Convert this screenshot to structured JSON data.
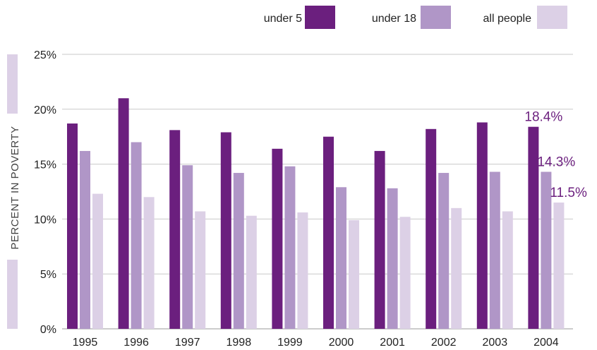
{
  "chart_data": {
    "type": "bar",
    "categories": [
      "1995",
      "1996",
      "1997",
      "1998",
      "1999",
      "2000",
      "2001",
      "2002",
      "2003",
      "2004"
    ],
    "series": [
      {
        "name": "under 5",
        "color": "#6b1f7e",
        "values": [
          18.7,
          21.0,
          18.1,
          17.9,
          16.4,
          17.5,
          16.2,
          18.2,
          18.8,
          18.4
        ]
      },
      {
        "name": "under 18",
        "color": "#b096c7",
        "values": [
          16.2,
          17.0,
          14.9,
          14.2,
          14.8,
          12.9,
          12.8,
          14.2,
          14.3,
          14.3
        ]
      },
      {
        "name": "all people",
        "color": "#dcd0e6",
        "values": [
          12.3,
          12.0,
          10.7,
          10.3,
          10.6,
          9.9,
          10.2,
          11.0,
          10.7,
          11.5
        ]
      }
    ],
    "ylabel": "PERCENT IN POVERTY",
    "ylim": [
      0,
      25
    ],
    "yticks": [
      0,
      5,
      10,
      15,
      20,
      25
    ],
    "ytick_labels": [
      "0%",
      "5%",
      "10%",
      "15%",
      "20%",
      "25%"
    ],
    "grid": true,
    "legend_position": "top-right",
    "annotations": [
      {
        "text": "18.4%",
        "category": "2004",
        "series": 0,
        "value": 18.4,
        "color": "#6b1f7e"
      },
      {
        "text": "14.3%",
        "category": "2004",
        "series": 1,
        "value": 14.3,
        "color": "#6b1f7e"
      },
      {
        "text": "11.5%",
        "category": "2004",
        "series": 2,
        "value": 11.5,
        "color": "#6b1f7e"
      }
    ],
    "axis_band_color": "#dcd0e6",
    "grid_color": "#c9c9c9"
  }
}
